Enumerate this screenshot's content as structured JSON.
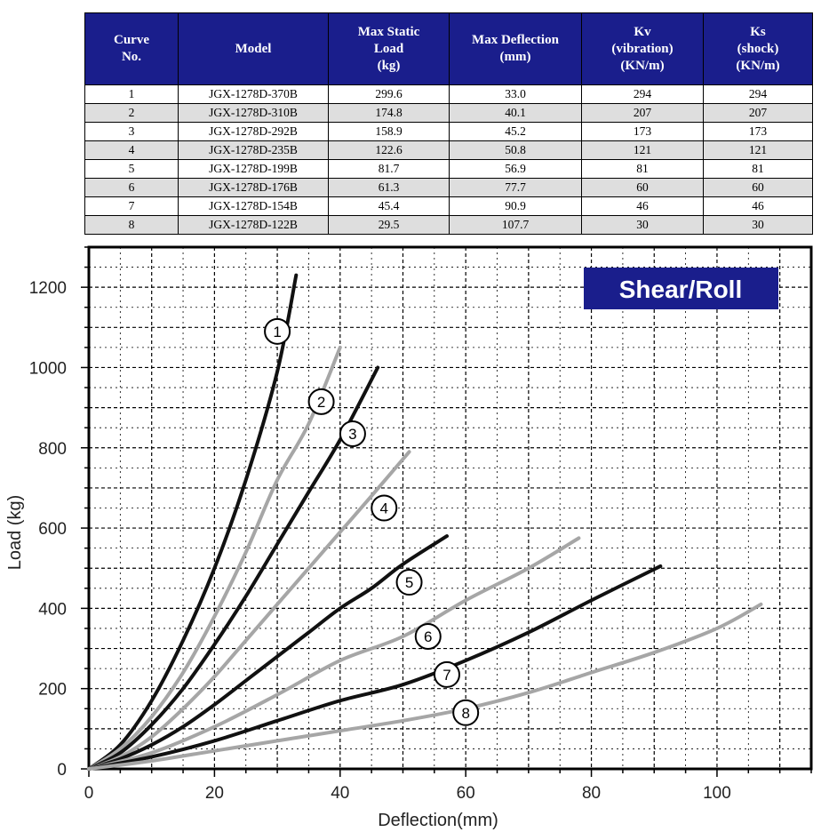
{
  "table": {
    "headers": [
      "Curve\nNo.",
      "Model",
      "Max Static\nLoad\n(kg)",
      "Max Deflection\n(mm)",
      "Kv\n(vibration)\n(KN/m)",
      "Ks\n(shock)\n(KN/m)"
    ],
    "rows": [
      [
        "1",
        "JGX-1278D-370B",
        "299.6",
        "33.0",
        "294",
        "294"
      ],
      [
        "2",
        "JGX-1278D-310B",
        "174.8",
        "40.1",
        "207",
        "207"
      ],
      [
        "3",
        "JGX-1278D-292B",
        "158.9",
        "45.2",
        "173",
        "173"
      ],
      [
        "4",
        "JGX-1278D-235B",
        "122.6",
        "50.8",
        "121",
        "121"
      ],
      [
        "5",
        "JGX-1278D-199B",
        "81.7",
        "56.9",
        "81",
        "81"
      ],
      [
        "6",
        "JGX-1278D-176B",
        "61.3",
        "77.7",
        "60",
        "60"
      ],
      [
        "7",
        "JGX-1278D-154B",
        "45.4",
        "90.9",
        "46",
        "46"
      ],
      [
        "8",
        "JGX-1278D-122B",
        "29.5",
        "107.7",
        "30",
        "30"
      ]
    ]
  },
  "chart_data": {
    "type": "line",
    "title": "Shear/Roll",
    "xlabel": "Deflection(mm)",
    "ylabel": "Load (kg)",
    "xlim": [
      0,
      115
    ],
    "ylim": [
      0,
      1300
    ],
    "xticks": [
      "0",
      "20",
      "40",
      "60",
      "80",
      "100"
    ],
    "yticks": [
      "0",
      "200",
      "400",
      "600",
      "800",
      "1000",
      "1200"
    ],
    "grid": true,
    "colors": {
      "dark": "#111111",
      "light": "#a6a6a6",
      "badge": "#1a1e8c"
    },
    "series": [
      {
        "name": "1",
        "color": "dark",
        "label_at": [
          30,
          1090
        ],
        "points": [
          [
            0,
            0
          ],
          [
            5,
            60
          ],
          [
            10,
            170
          ],
          [
            15,
            320
          ],
          [
            20,
            500
          ],
          [
            25,
            720
          ],
          [
            30,
            990
          ],
          [
            33,
            1230
          ]
        ]
      },
      {
        "name": "2",
        "color": "light",
        "label_at": [
          37,
          915
        ],
        "points": [
          [
            0,
            0
          ],
          [
            5,
            50
          ],
          [
            10,
            130
          ],
          [
            15,
            240
          ],
          [
            20,
            380
          ],
          [
            25,
            540
          ],
          [
            30,
            720
          ],
          [
            35,
            860
          ],
          [
            40,
            1050
          ]
        ]
      },
      {
        "name": "3",
        "color": "dark",
        "label_at": [
          42,
          835
        ],
        "points": [
          [
            0,
            0
          ],
          [
            5,
            40
          ],
          [
            10,
            110
          ],
          [
            15,
            200
          ],
          [
            20,
            310
          ],
          [
            25,
            430
          ],
          [
            30,
            560
          ],
          [
            35,
            690
          ],
          [
            40,
            820
          ],
          [
            46,
            1000
          ]
        ]
      },
      {
        "name": "4",
        "color": "light",
        "label_at": [
          47,
          650
        ],
        "points": [
          [
            0,
            0
          ],
          [
            5,
            30
          ],
          [
            10,
            80
          ],
          [
            15,
            150
          ],
          [
            20,
            230
          ],
          [
            25,
            320
          ],
          [
            30,
            410
          ],
          [
            35,
            500
          ],
          [
            40,
            590
          ],
          [
            45,
            680
          ],
          [
            51,
            790
          ]
        ]
      },
      {
        "name": "5",
        "color": "dark",
        "label_at": [
          51,
          465
        ],
        "points": [
          [
            0,
            0
          ],
          [
            5,
            25
          ],
          [
            10,
            60
          ],
          [
            15,
            105
          ],
          [
            20,
            160
          ],
          [
            25,
            220
          ],
          [
            30,
            280
          ],
          [
            35,
            340
          ],
          [
            40,
            400
          ],
          [
            45,
            450
          ],
          [
            50,
            510
          ],
          [
            57,
            580
          ]
        ]
      },
      {
        "name": "6",
        "color": "light",
        "label_at": [
          54,
          330
        ],
        "points": [
          [
            0,
            0
          ],
          [
            10,
            40
          ],
          [
            20,
            105
          ],
          [
            30,
            185
          ],
          [
            40,
            270
          ],
          [
            50,
            330
          ],
          [
            60,
            420
          ],
          [
            70,
            500
          ],
          [
            78,
            575
          ]
        ]
      },
      {
        "name": "7",
        "color": "dark",
        "label_at": [
          57,
          235
        ],
        "points": [
          [
            0,
            0
          ],
          [
            10,
            30
          ],
          [
            20,
            70
          ],
          [
            30,
            120
          ],
          [
            40,
            170
          ],
          [
            50,
            210
          ],
          [
            60,
            270
          ],
          [
            70,
            340
          ],
          [
            80,
            420
          ],
          [
            91,
            505
          ]
        ]
      },
      {
        "name": "8",
        "color": "light",
        "label_at": [
          60,
          140
        ],
        "points": [
          [
            0,
            0
          ],
          [
            10,
            20
          ],
          [
            20,
            45
          ],
          [
            30,
            70
          ],
          [
            40,
            95
          ],
          [
            50,
            120
          ],
          [
            60,
            150
          ],
          [
            70,
            190
          ],
          [
            80,
            240
          ],
          [
            90,
            290
          ],
          [
            100,
            350
          ],
          [
            107,
            410
          ]
        ]
      }
    ]
  }
}
